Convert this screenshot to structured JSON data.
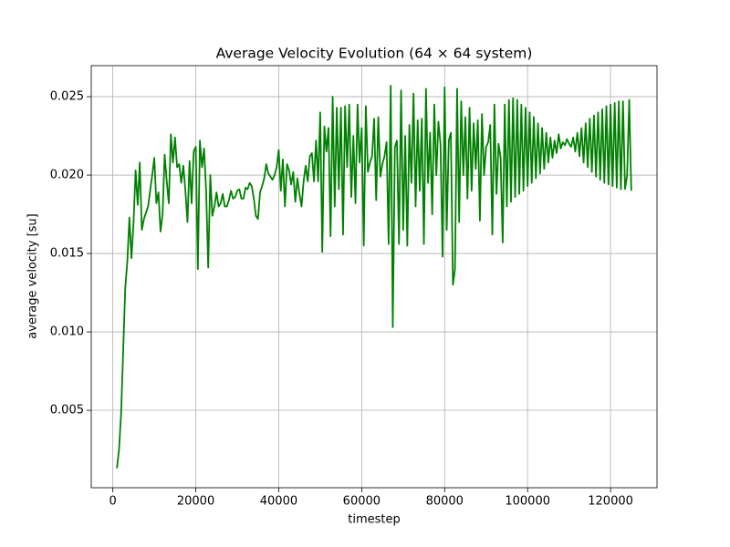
{
  "chart_data": {
    "type": "line",
    "title": "Average Velocity Evolution (64 × 64 system)",
    "xlabel": "timestep",
    "ylabel": "average velocity [su]",
    "xlim": [
      -5200,
      131200
    ],
    "ylim": [
      6e-05,
      0.02698
    ],
    "xticks": [
      0,
      20000,
      40000,
      60000,
      80000,
      100000,
      120000
    ],
    "yticks": [
      0.005,
      {
        "value": 0.01,
        "label": "0.010"
      },
      0.015,
      {
        "value": 0.02,
        "label": "0.020"
      },
      0.025
    ],
    "grid": true,
    "series": [
      {
        "color": "#008000",
        "x": [
          1000,
          1500,
          2000,
          2500,
          3000,
          3500,
          4000,
          4500,
          5000,
          5500,
          6000,
          6500,
          7000,
          7500,
          8000,
          8500,
          9000,
          9500,
          10000,
          10500,
          11000,
          11500,
          12000,
          12500,
          13000,
          13500,
          14000,
          14500,
          15000,
          15500,
          16000,
          16500,
          17000,
          17500,
          18000,
          18500,
          19000,
          19500,
          20000,
          20500,
          21000,
          21500,
          22000,
          22500,
          23000,
          23500,
          24000,
          24500,
          25000,
          25500,
          26000,
          26500,
          27000,
          27500,
          28000,
          28500,
          29000,
          29500,
          30000,
          30500,
          31000,
          31500,
          32000,
          32500,
          33000,
          33500,
          34000,
          34500,
          35000,
          35500,
          36000,
          36500,
          37000,
          37500,
          38000,
          38500,
          39000,
          39500,
          40000,
          40500,
          41000,
          41500,
          42000,
          42500,
          43000,
          43500,
          44000,
          44500,
          45000,
          45500,
          46000,
          46500,
          47000,
          47500,
          48000,
          48500,
          49000,
          49500,
          50000,
          50500,
          51000,
          51500,
          52000,
          52500,
          53000,
          53500,
          54000,
          54500,
          55000,
          55500,
          56000,
          56500,
          57000,
          57500,
          58000,
          58500,
          59000,
          59500,
          60000,
          60500,
          61000,
          61500,
          62000,
          62500,
          63000,
          63500,
          64000,
          64500,
          65000,
          65500,
          66000,
          66500,
          67000,
          67500,
          68000,
          68500,
          69000,
          69500,
          70000,
          70500,
          71000,
          71500,
          72000,
          72500,
          73000,
          73500,
          74000,
          74500,
          75000,
          75500,
          76000,
          76500,
          77000,
          77500,
          78000,
          78500,
          79000,
          79500,
          80000,
          80500,
          81000,
          81500,
          82000,
          82500,
          83000,
          83500,
          84000,
          84500,
          85000,
          85500,
          86000,
          86500,
          87000,
          87500,
          88000,
          88500,
          89000,
          89500,
          90000,
          90500,
          91000,
          91500,
          92000,
          92500,
          93000,
          93500,
          94000,
          94500,
          95000,
          95500,
          96000,
          96500,
          97000,
          97500,
          98000,
          98500,
          99000,
          99500,
          100000,
          100500,
          101000,
          101500,
          102000,
          102500,
          103000,
          103500,
          104000,
          104500,
          105000,
          105500,
          106000,
          106500,
          107000,
          107500,
          108000,
          108500,
          109000,
          109500,
          110000,
          110500,
          111000,
          111500,
          112000,
          112500,
          113000,
          113500,
          114000,
          114500,
          115000,
          115500,
          116000,
          116500,
          117000,
          117500,
          118000,
          118500,
          119000,
          119500,
          120000,
          120500,
          121000,
          121500,
          122000,
          122500,
          123000,
          123500,
          124000,
          124500,
          125000
        ],
        "values": [
          0.0013,
          0.0025,
          0.0048,
          0.0088,
          0.0128,
          0.0145,
          0.0173,
          0.0147,
          0.017,
          0.0203,
          0.0181,
          0.0208,
          0.0165,
          0.0172,
          0.0176,
          0.018,
          0.019,
          0.02,
          0.0211,
          0.0182,
          0.0189,
          0.0164,
          0.0175,
          0.0213,
          0.0196,
          0.0182,
          0.0226,
          0.0208,
          0.0224,
          0.0205,
          0.0207,
          0.0195,
          0.0206,
          0.019,
          0.017,
          0.0209,
          0.0182,
          0.0215,
          0.0218,
          0.014,
          0.0222,
          0.0205,
          0.0217,
          0.019,
          0.0141,
          0.02,
          0.0174,
          0.018,
          0.0189,
          0.018,
          0.0182,
          0.0188,
          0.018,
          0.018,
          0.0184,
          0.019,
          0.0185,
          0.0186,
          0.019,
          0.0191,
          0.0185,
          0.0185,
          0.0192,
          0.0191,
          0.0195,
          0.0193,
          0.0185,
          0.0174,
          0.0172,
          0.0189,
          0.0193,
          0.0198,
          0.0207,
          0.0201,
          0.0199,
          0.0197,
          0.02,
          0.0205,
          0.0216,
          0.019,
          0.021,
          0.018,
          0.0207,
          0.0203,
          0.0194,
          0.0202,
          0.0183,
          0.0198,
          0.0188,
          0.018,
          0.0196,
          0.0206,
          0.0196,
          0.0212,
          0.0214,
          0.0196,
          0.0222,
          0.0196,
          0.024,
          0.0151,
          0.0231,
          0.0215,
          0.023,
          0.0161,
          0.025,
          0.018,
          0.0243,
          0.0191,
          0.0243,
          0.0162,
          0.0244,
          0.0205,
          0.0245,
          0.0186,
          0.0225,
          0.0182,
          0.0245,
          0.0208,
          0.023,
          0.0155,
          0.0244,
          0.0202,
          0.0208,
          0.0212,
          0.0236,
          0.0184,
          0.0237,
          0.0199,
          0.0207,
          0.0212,
          0.0221,
          0.0156,
          0.0257,
          0.0103,
          0.0218,
          0.0222,
          0.0156,
          0.0254,
          0.0165,
          0.0225,
          0.0155,
          0.0232,
          0.0195,
          0.0252,
          0.018,
          0.0235,
          0.019,
          0.0236,
          0.0156,
          0.0255,
          0.0195,
          0.0227,
          0.0175,
          0.0245,
          0.02,
          0.0234,
          0.022,
          0.0148,
          0.0256,
          0.0165,
          0.0222,
          0.0227,
          0.013,
          0.014,
          0.0255,
          0.017,
          0.0247,
          0.02,
          0.0237,
          0.0185,
          0.0243,
          0.019,
          0.0233,
          0.0204,
          0.0235,
          0.0171,
          0.0239,
          0.02,
          0.0218,
          0.0221,
          0.0232,
          0.0162,
          0.0245,
          0.0188,
          0.022,
          0.0211,
          0.0157,
          0.0245,
          0.018,
          0.0248,
          0.0183,
          0.0249,
          0.0186,
          0.0248,
          0.0188,
          0.0245,
          0.019,
          0.0243,
          0.0193,
          0.024,
          0.0195,
          0.0237,
          0.0198,
          0.0233,
          0.0201,
          0.023,
          0.0204,
          0.0227,
          0.0208,
          0.0224,
          0.0211,
          0.0222,
          0.0214,
          0.0226,
          0.0217,
          0.0221,
          0.0219,
          0.0223,
          0.022,
          0.0218,
          0.0224,
          0.0215,
          0.0227,
          0.0212,
          0.023,
          0.0208,
          0.0233,
          0.0205,
          0.0236,
          0.0202,
          0.0238,
          0.0199,
          0.024,
          0.0197,
          0.0242,
          0.0195,
          0.0244,
          0.0194,
          0.0245,
          0.0193,
          0.0246,
          0.0192,
          0.0247,
          0.0191,
          0.0247,
          0.0191,
          0.02,
          0.0248,
          0.019
        ]
      }
    ]
  }
}
